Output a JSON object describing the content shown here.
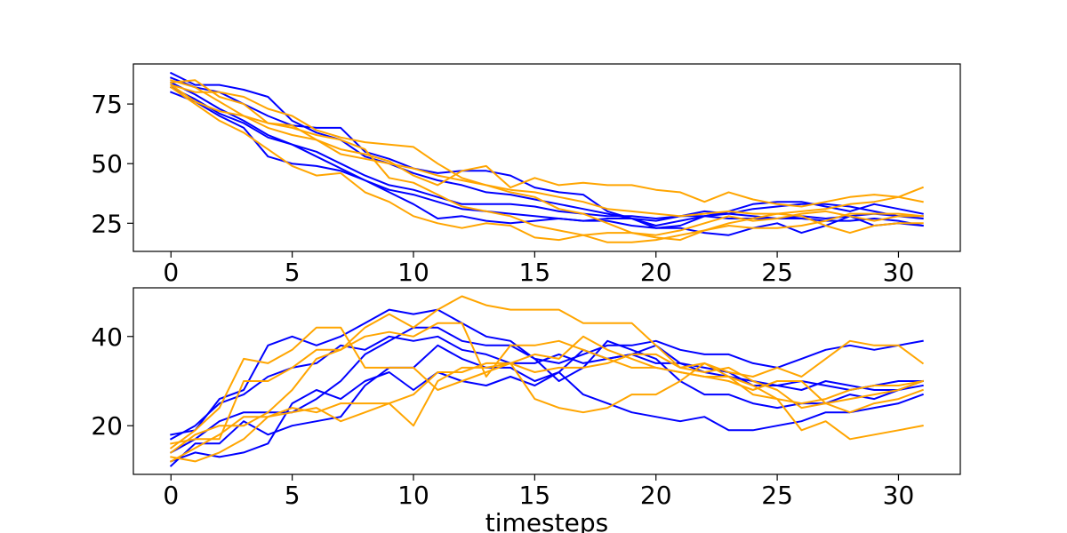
{
  "colors": {
    "blue": "#0000ff",
    "orange": "#ffa500"
  },
  "chart_data": [
    {
      "type": "line",
      "title": "",
      "xlabel": "",
      "ylabel": "",
      "xlim": [
        -1.55,
        32.55
      ],
      "ylim": [
        13.2,
        91.8
      ],
      "xticks": [
        0,
        5,
        10,
        15,
        20,
        25,
        30
      ],
      "yticks": [
        25,
        50,
        75
      ],
      "grid": false,
      "legend": "none",
      "x": [
        0,
        1,
        2,
        3,
        4,
        5,
        6,
        7,
        8,
        9,
        10,
        11,
        12,
        13,
        14,
        15,
        16,
        17,
        18,
        19,
        20,
        21,
        22,
        23,
        24,
        25,
        26,
        27,
        28,
        29,
        30,
        31
      ],
      "series": [
        {
          "color": "blue",
          "values": [
            88,
            83,
            83,
            81,
            78,
            68,
            63,
            60,
            53,
            50,
            46,
            43,
            41,
            38,
            37,
            35,
            33,
            31,
            29,
            27,
            24,
            26,
            28,
            29,
            31,
            32,
            33,
            33,
            32,
            30,
            28,
            27
          ]
        },
        {
          "color": "blue",
          "values": [
            86,
            82,
            80,
            75,
            70,
            66,
            65,
            65,
            55,
            52,
            48,
            46,
            47,
            47,
            45,
            40,
            38,
            37,
            30,
            27,
            23,
            24,
            28,
            30,
            33,
            34,
            34,
            32,
            30,
            33,
            31,
            29
          ]
        },
        {
          "color": "blue",
          "values": [
            84,
            79,
            73,
            68,
            62,
            58,
            53,
            48,
            43,
            39,
            37,
            34,
            31,
            30,
            29,
            28,
            27,
            26,
            27,
            27,
            26,
            28,
            30,
            29,
            28,
            27,
            28,
            27,
            28,
            29,
            28,
            28
          ]
        },
        {
          "color": "blue",
          "values": [
            82,
            77,
            71,
            67,
            61,
            58,
            55,
            50,
            45,
            41,
            39,
            36,
            33,
            33,
            33,
            32,
            30,
            29,
            28,
            28,
            27,
            28,
            28,
            27,
            27,
            27,
            27,
            26,
            26,
            27,
            26,
            24
          ]
        },
        {
          "color": "blue",
          "values": [
            80,
            76,
            70,
            65,
            53,
            50,
            49,
            47,
            43,
            38,
            33,
            27,
            28,
            26,
            25,
            26,
            27,
            26,
            26,
            24,
            23,
            23,
            21,
            20,
            23,
            25,
            21,
            24,
            28,
            24,
            25,
            24
          ]
        },
        {
          "color": "orange",
          "values": [
            85,
            82,
            76,
            70,
            65,
            62,
            60,
            54,
            52,
            50,
            48,
            45,
            43,
            41,
            39,
            38,
            36,
            34,
            31,
            30,
            29,
            28,
            29,
            30,
            29,
            29,
            30,
            31,
            33,
            34,
            36,
            40
          ]
        },
        {
          "color": "orange",
          "values": [
            84,
            85,
            78,
            75,
            67,
            66,
            60,
            56,
            54,
            51,
            45,
            41,
            47,
            49,
            40,
            44,
            41,
            42,
            41,
            41,
            39,
            38,
            34,
            38,
            35,
            33,
            32,
            34,
            36,
            37,
            36,
            34
          ]
        },
        {
          "color": "orange",
          "values": [
            83,
            80,
            80,
            78,
            73,
            70,
            64,
            61,
            59,
            58,
            57,
            50,
            44,
            41,
            38,
            36,
            31,
            29,
            25,
            21,
            20,
            22,
            25,
            28,
            26,
            27,
            29,
            30,
            28,
            26,
            28,
            28
          ]
        },
        {
          "color": "orange",
          "values": [
            83,
            76,
            72,
            70,
            67,
            65,
            62,
            60,
            56,
            44,
            42,
            37,
            32,
            30,
            28,
            24,
            22,
            20,
            17,
            17,
            18,
            20,
            22,
            25,
            27,
            29,
            28,
            24,
            21,
            24,
            25,
            25
          ]
        },
        {
          "color": "orange",
          "values": [
            82,
            75,
            68,
            63,
            56,
            49,
            45,
            46,
            38,
            34,
            28,
            25,
            23,
            25,
            24,
            19,
            18,
            20,
            21,
            21,
            19,
            18,
            22,
            24,
            23,
            23,
            24,
            26,
            29,
            29,
            29,
            28
          ]
        }
      ]
    },
    {
      "type": "line",
      "title": "",
      "xlabel": "timesteps",
      "ylabel": "",
      "xlim": [
        -1.55,
        32.55
      ],
      "ylim": [
        9.1,
        50.9
      ],
      "xticks": [
        0,
        5,
        10,
        15,
        20,
        25,
        30
      ],
      "yticks": [
        20,
        40
      ],
      "grid": false,
      "legend": "none",
      "x": [
        0,
        1,
        2,
        3,
        4,
        5,
        6,
        7,
        8,
        9,
        10,
        11,
        12,
        13,
        14,
        15,
        16,
        17,
        18,
        19,
        20,
        21,
        22,
        23,
        24,
        25,
        26,
        27,
        28,
        29,
        30,
        31
      ],
      "series": [
        {
          "color": "blue",
          "values": [
            18,
            19,
            26,
            28,
            38,
            40,
            38,
            40,
            43,
            46,
            45,
            46,
            43,
            40,
            39,
            35,
            34,
            36,
            38,
            38,
            39,
            37,
            36,
            36,
            34,
            33,
            35,
            37,
            38,
            37,
            38,
            39
          ]
        },
        {
          "color": "blue",
          "values": [
            17,
            20,
            25,
            27,
            31,
            33,
            34,
            38,
            37,
            40,
            39,
            40,
            37,
            36,
            34,
            34,
            36,
            34,
            35,
            36,
            34,
            34,
            32,
            31,
            30,
            29,
            30,
            29,
            28,
            29,
            30,
            30
          ]
        },
        {
          "color": "blue",
          "values": [
            14,
            17,
            21,
            23,
            23,
            23,
            26,
            30,
            36,
            39,
            42,
            42,
            39,
            38,
            38,
            35,
            30,
            33,
            39,
            37,
            35,
            30,
            27,
            27,
            25,
            24,
            25,
            25,
            27,
            26,
            28,
            30
          ]
        },
        {
          "color": "blue",
          "values": [
            12,
            14,
            13,
            14,
            16,
            25,
            28,
            26,
            30,
            32,
            28,
            32,
            30,
            29,
            31,
            29,
            32,
            37,
            35,
            36,
            38,
            34,
            33,
            32,
            29,
            29,
            28,
            30,
            29,
            28,
            28,
            29
          ]
        },
        {
          "color": "blue",
          "values": [
            11,
            16,
            16,
            21,
            18,
            20,
            21,
            22,
            29,
            33,
            33,
            38,
            35,
            33,
            33,
            30,
            32,
            27,
            25,
            23,
            22,
            21,
            22,
            19,
            19,
            20,
            21,
            23,
            23,
            24,
            25,
            27
          ]
        },
        {
          "color": "orange",
          "values": [
            16,
            17,
            17,
            30,
            30,
            33,
            37,
            37,
            42,
            45,
            42,
            46,
            49,
            47,
            46,
            46,
            46,
            43,
            43,
            43,
            38,
            33,
            34,
            32,
            31,
            33,
            31,
            35,
            39,
            38,
            38,
            34
          ]
        },
        {
          "color": "orange",
          "values": [
            15,
            19,
            24,
            35,
            34,
            37,
            42,
            42,
            33,
            33,
            33,
            28,
            30,
            32,
            34,
            26,
            24,
            23,
            24,
            27,
            27,
            30,
            34,
            31,
            29,
            26,
            25,
            26,
            28,
            29,
            29,
            30
          ]
        },
        {
          "color": "orange",
          "values": [
            14,
            18,
            20,
            20,
            23,
            28,
            35,
            37,
            40,
            41,
            40,
            43,
            43,
            31,
            38,
            38,
            39,
            37,
            35,
            33,
            33,
            32,
            31,
            30,
            28,
            30,
            30,
            25,
            23,
            25,
            26,
            28
          ]
        },
        {
          "color": "orange",
          "values": [
            13,
            12,
            14,
            17,
            22,
            23,
            24,
            21,
            23,
            25,
            27,
            32,
            32,
            34,
            34,
            36,
            35,
            40,
            37,
            35,
            33,
            32,
            31,
            31,
            27,
            26,
            19,
            21,
            17,
            18,
            19,
            20
          ]
        },
        {
          "color": "orange",
          "values": [
            12,
            15,
            18,
            22,
            22,
            24,
            23,
            25,
            25,
            25,
            20,
            30,
            33,
            33,
            34,
            32,
            33,
            33,
            34,
            36,
            36,
            33,
            32,
            33,
            30,
            28,
            24,
            25,
            26,
            27,
            28,
            30
          ]
        }
      ]
    }
  ]
}
